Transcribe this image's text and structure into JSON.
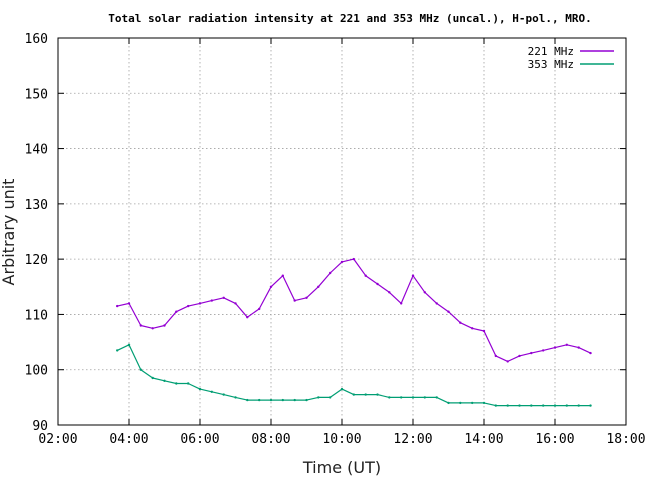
{
  "chart_data": {
    "type": "line",
    "title": "Total solar radiation intensity at 221 and 353 MHz (uncal.), H-pol., MRO.",
    "xlabel": "Time (UT)",
    "ylabel": "Arbitrary unit",
    "xlim": [
      "02:00",
      "18:00"
    ],
    "ylim": [
      90,
      160
    ],
    "xticks": [
      "02:00",
      "04:00",
      "06:00",
      "08:00",
      "10:00",
      "12:00",
      "14:00",
      "16:00",
      "18:00"
    ],
    "yticks": [
      "90",
      "100",
      "110",
      "120",
      "130",
      "140",
      "150",
      "160"
    ],
    "grid": true,
    "legend_position": "top-right",
    "series": [
      {
        "name": "221 MHz",
        "color": "#9400d3",
        "x": [
          "03:40",
          "04:00",
          "04:20",
          "04:40",
          "05:00",
          "05:20",
          "05:40",
          "06:00",
          "06:20",
          "06:40",
          "07:00",
          "07:20",
          "07:40",
          "08:00",
          "08:20",
          "08:40",
          "09:00",
          "09:20",
          "09:40",
          "10:00",
          "10:20",
          "10:40",
          "11:00",
          "11:20",
          "11:40",
          "12:00",
          "12:20",
          "12:40",
          "13:00",
          "13:20",
          "13:40",
          "14:00",
          "14:20",
          "14:40",
          "15:00",
          "15:20",
          "15:40",
          "16:00",
          "16:20",
          "16:40",
          "17:00"
        ],
        "values": [
          111.5,
          112,
          108,
          107.5,
          108,
          110.5,
          111.5,
          112,
          112.5,
          113,
          112,
          109.5,
          111,
          115,
          117,
          112.5,
          113,
          115,
          117.5,
          119.5,
          120,
          117,
          115.5,
          114,
          112,
          117,
          114,
          112,
          110.5,
          108.5,
          107.5,
          107,
          102.5,
          101.5,
          102.5,
          103,
          103.5,
          104,
          104.5,
          104,
          103
        ]
      },
      {
        "name": "353 MHz",
        "color": "#009e73",
        "x": [
          "03:40",
          "04:00",
          "04:20",
          "04:40",
          "05:00",
          "05:20",
          "05:40",
          "06:00",
          "06:20",
          "06:40",
          "07:00",
          "07:20",
          "07:40",
          "08:00",
          "08:20",
          "08:40",
          "09:00",
          "09:20",
          "09:40",
          "10:00",
          "10:20",
          "10:40",
          "11:00",
          "11:20",
          "11:40",
          "12:00",
          "12:20",
          "12:40",
          "13:00",
          "13:20",
          "13:40",
          "14:00",
          "14:20",
          "14:40",
          "15:00",
          "15:20",
          "15:40",
          "16:00",
          "16:20",
          "16:40",
          "17:00"
        ],
        "values": [
          103.5,
          104.5,
          100,
          98.5,
          98,
          97.5,
          97.5,
          96.5,
          96,
          95.5,
          95,
          94.5,
          94.5,
          94.5,
          94.5,
          94.5,
          94.5,
          95,
          95,
          96.5,
          95.5,
          95.5,
          95.5,
          95,
          95,
          95,
          95,
          95,
          94,
          94,
          94,
          94,
          93.5,
          93.5,
          93.5,
          93.5,
          93.5,
          93.5,
          93.5,
          93.5,
          93.5
        ]
      }
    ]
  }
}
